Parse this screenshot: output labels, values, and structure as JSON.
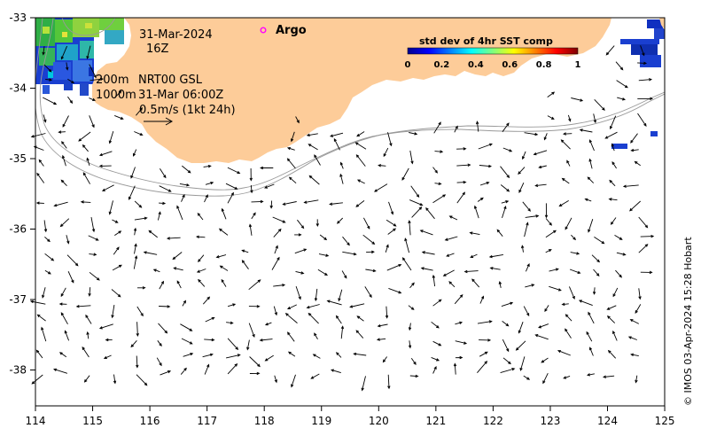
{
  "map": {
    "date": "31-Mar-2024",
    "hour": "16Z",
    "argo_label": "Argo",
    "contour_label_200": "200m",
    "contour_label_1000": "1000m",
    "product": "NRT00 GSL",
    "vector_time": "31-Mar 06:00Z",
    "scale_text": "0.5m/s (1kt 24h)",
    "credit": "© IMOS 03-Apr-2024 15:28 Hobart",
    "lon_ticks": [
      "114",
      "115",
      "116",
      "117",
      "118",
      "119",
      "120",
      "121",
      "122",
      "123",
      "124",
      "125"
    ],
    "lat_ticks": [
      "-33",
      "-34",
      "-35",
      "-36",
      "-37",
      "-38"
    ],
    "lon_range": [
      114,
      125
    ],
    "lat_range": [
      -38.55,
      -33.0
    ],
    "colors": {
      "land": "#fdcc99",
      "frame": "#000000",
      "contour": "#999999",
      "argo": "#ff00ff"
    }
  },
  "colorbar": {
    "title": "std dev of 4hr SST comp",
    "ticks": [
      "0",
      "0.2",
      "0.4",
      "0.6",
      "0.8",
      "1"
    ],
    "colormap": "jet"
  }
}
